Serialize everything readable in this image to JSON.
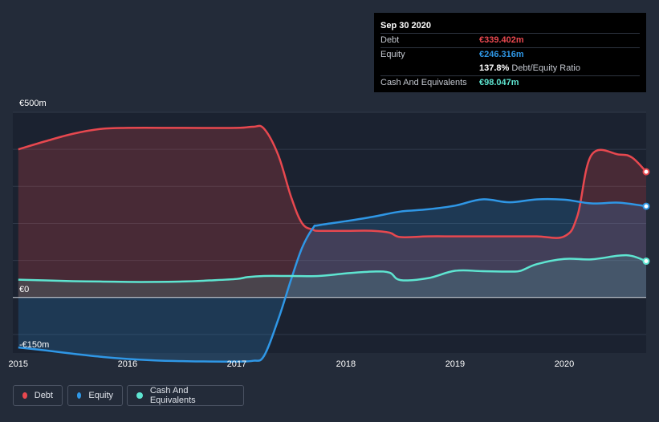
{
  "tooltip": {
    "date": "Sep 30 2020",
    "rows": [
      {
        "label": "Debt",
        "value": "€339.402m",
        "color": "#e8484f"
      },
      {
        "label": "Equity",
        "value": "€246.316m",
        "color": "#2f97e6"
      },
      {
        "label": "",
        "value": "137.8%",
        "extra": "Debt/Equity Ratio",
        "color": "#ffffff"
      },
      {
        "label": "Cash And Equivalents",
        "value": "€98.047m",
        "color": "#5ee5d1"
      }
    ]
  },
  "legend": [
    {
      "label": "Debt",
      "color": "#e8484f"
    },
    {
      "label": "Equity",
      "color": "#2f97e6"
    },
    {
      "label": "Cash And Equivalents",
      "color": "#5ee5d1"
    }
  ],
  "chart_data": {
    "type": "area",
    "y_tick_labels": [
      "€500m",
      "€0",
      "-€150m"
    ],
    "x_tick_labels": [
      "2015",
      "2016",
      "2017",
      "2018",
      "2019",
      "2020"
    ],
    "ylim": [
      -150,
      500
    ],
    "xlim": [
      2014.95,
      2020.75
    ],
    "unit": "€m",
    "grid": true,
    "legend_position": "bottom-left",
    "series": [
      {
        "name": "Debt",
        "color": "#e8484f",
        "points": [
          [
            2015.0,
            400
          ],
          [
            2015.25,
            422
          ],
          [
            2015.5,
            442
          ],
          [
            2015.75,
            455
          ],
          [
            2016.0,
            458
          ],
          [
            2016.5,
            458
          ],
          [
            2017.0,
            458
          ],
          [
            2017.15,
            461
          ],
          [
            2017.25,
            456
          ],
          [
            2017.38,
            385
          ],
          [
            2017.5,
            270
          ],
          [
            2017.6,
            200
          ],
          [
            2017.7,
            183
          ],
          [
            2017.75,
            180
          ],
          [
            2018.0,
            180
          ],
          [
            2018.25,
            180
          ],
          [
            2018.4,
            175
          ],
          [
            2018.5,
            163
          ],
          [
            2018.75,
            165
          ],
          [
            2019.0,
            165
          ],
          [
            2019.25,
            165
          ],
          [
            2019.5,
            165
          ],
          [
            2019.75,
            165
          ],
          [
            2020.0,
            165
          ],
          [
            2020.12,
            220
          ],
          [
            2020.25,
            385
          ],
          [
            2020.5,
            386
          ],
          [
            2020.62,
            378
          ],
          [
            2020.75,
            339.402
          ]
        ]
      },
      {
        "name": "Equity",
        "color": "#2f97e6",
        "points": [
          [
            2015.0,
            -135
          ],
          [
            2015.25,
            -143
          ],
          [
            2015.5,
            -152
          ],
          [
            2015.75,
            -160
          ],
          [
            2016.0,
            -166
          ],
          [
            2016.25,
            -170
          ],
          [
            2016.5,
            -172
          ],
          [
            2016.75,
            -173
          ],
          [
            2017.0,
            -173
          ],
          [
            2017.15,
            -171
          ],
          [
            2017.25,
            -158
          ],
          [
            2017.38,
            -60
          ],
          [
            2017.5,
            50
          ],
          [
            2017.6,
            135
          ],
          [
            2017.7,
            188
          ],
          [
            2017.75,
            195
          ],
          [
            2018.0,
            206
          ],
          [
            2018.25,
            218
          ],
          [
            2018.5,
            232
          ],
          [
            2018.75,
            238
          ],
          [
            2019.0,
            248
          ],
          [
            2019.25,
            265
          ],
          [
            2019.5,
            257
          ],
          [
            2019.75,
            265
          ],
          [
            2020.0,
            264
          ],
          [
            2020.25,
            254
          ],
          [
            2020.5,
            256
          ],
          [
            2020.75,
            246.316
          ]
        ]
      },
      {
        "name": "Cash And Equivalents",
        "color": "#5ee5d1",
        "points": [
          [
            2015.0,
            48
          ],
          [
            2015.25,
            46
          ],
          [
            2015.5,
            44
          ],
          [
            2015.75,
            43
          ],
          [
            2016.0,
            42
          ],
          [
            2016.25,
            42
          ],
          [
            2016.5,
            43
          ],
          [
            2016.75,
            46
          ],
          [
            2017.0,
            50
          ],
          [
            2017.1,
            55
          ],
          [
            2017.25,
            58
          ],
          [
            2017.5,
            58
          ],
          [
            2017.75,
            58
          ],
          [
            2018.0,
            65
          ],
          [
            2018.25,
            70
          ],
          [
            2018.4,
            67
          ],
          [
            2018.5,
            47
          ],
          [
            2018.75,
            52
          ],
          [
            2019.0,
            72
          ],
          [
            2019.25,
            71
          ],
          [
            2019.5,
            70
          ],
          [
            2019.6,
            72
          ],
          [
            2019.75,
            90
          ],
          [
            2020.0,
            104
          ],
          [
            2020.25,
            103
          ],
          [
            2020.5,
            113
          ],
          [
            2020.62,
            112
          ],
          [
            2020.75,
            98.047
          ]
        ]
      }
    ]
  }
}
